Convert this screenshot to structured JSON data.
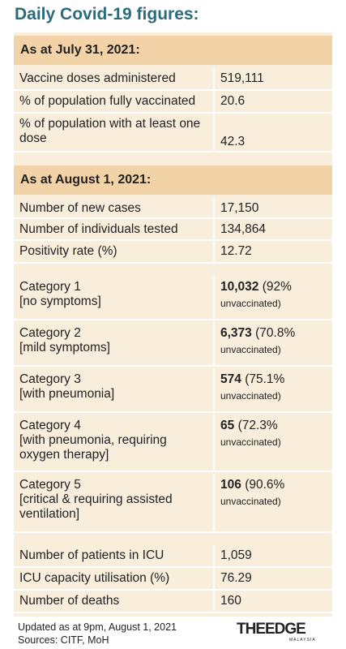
{
  "title": "Daily Covid-19 figures:",
  "section1": {
    "header": "As at July 31, 2021:",
    "rows": [
      [
        "Vaccine doses administered",
        "519,111"
      ],
      [
        "% of population fully vaccinated",
        "20.6"
      ],
      [
        "% of population with at least one dose",
        "42.3"
      ]
    ]
  },
  "section2": {
    "header": "As at August 1, 2021:",
    "rows": [
      [
        "Number of new cases",
        "17,150"
      ],
      [
        "Number of individuals tested",
        "134,864"
      ],
      [
        "Positivity rate (%)",
        "12.72"
      ]
    ]
  },
  "categories": [
    {
      "name": "Category 1",
      "desc": "[no symptoms]",
      "value": "10,032",
      "pct": "(92%",
      "tail": "unvaccinated)"
    },
    {
      "name": "Category 2",
      "desc": "[mild symptoms]",
      "value": "6,373",
      "pct": "(70.8%",
      "tail": "unvaccinated)"
    },
    {
      "name": "Category 3",
      "desc": "[with pneumonia]",
      "value": "574",
      "pct": "(75.1%",
      "tail": "unvaccinated)"
    },
    {
      "name": "Category 4",
      "desc": "[with pneumonia, requiring oxygen therapy]",
      "value": "65",
      "pct": "(72.3%",
      "tail": "unvaccinated)"
    },
    {
      "name": "Category 5",
      "desc": "[critical & requiring assisted ventilation]",
      "value": "106",
      "pct": "(90.6%",
      "tail": "unvaccinated)"
    }
  ],
  "section3": {
    "rows": [
      [
        "Number of patients in ICU",
        "1,059"
      ],
      [
        "ICU capacity utilisation (%)",
        "76.29"
      ],
      [
        "Number of deaths",
        "160"
      ]
    ]
  },
  "footer": {
    "updated": "Updated as at 9pm, August 1, 2021",
    "sources": "Sources: CITF, MoH"
  },
  "logo": {
    "text": "THEEDGE",
    "sub": "MALAYSIA"
  }
}
